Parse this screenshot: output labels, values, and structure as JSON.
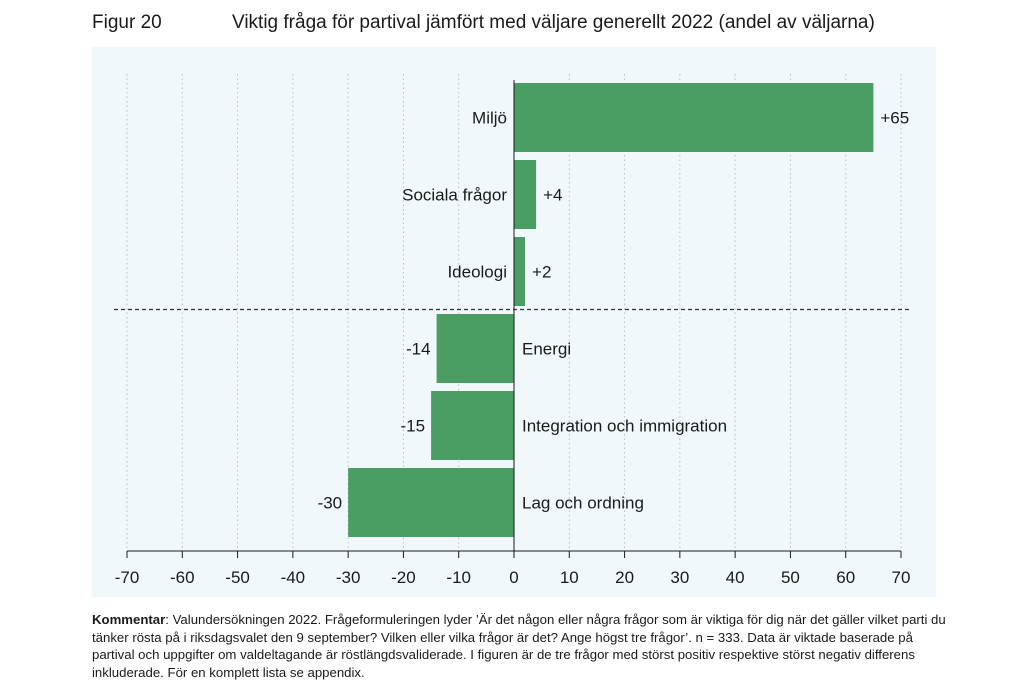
{
  "figure": {
    "number": "Figur 20",
    "title": "Viktig fråga för partival jämfört med väljare generellt 2022 (andel av väljarna)"
  },
  "comment": {
    "label": "Kommentar",
    "text": ": Valundersökningen 2022. Frågeformuleringen lyder ’Är det någon eller några frågor som är viktiga för dig när det gäller vilket parti du tänker rösta på i riksdagsvalet den 9 september? Vilken eller vilka frågor är det? Ange högst tre frågor’. n = 333. Data är viktade baserade på partival och uppgifter om valdeltagande är röstlängdsvaliderade. I figuren är de tre frågor med störst positiv respektive störst negativ differens inkluderade. För en komplett lista se appendix."
  },
  "chart_data": {
    "type": "bar",
    "orientation": "horizontal",
    "categories": [
      "Miljö",
      "Sociala frågor",
      "Ideologi",
      "Energi",
      "Integration och immigration",
      "Lag och ordning"
    ],
    "values": [
      65,
      4,
      2,
      -14,
      -15,
      -30
    ],
    "value_labels": [
      "+65",
      "+4",
      "+2",
      "-14",
      "-15",
      "-30"
    ],
    "xlim": [
      -70,
      70
    ],
    "xticks": [
      -70,
      -60,
      -50,
      -40,
      -30,
      -20,
      -10,
      0,
      10,
      20,
      30,
      40,
      50,
      60,
      70
    ],
    "xlabel": "",
    "ylabel": "",
    "grid": "vertical dotted",
    "separator": "dashed line between positive and negative groups",
    "bar_color": "#4a9d63",
    "background_color": "#f1f8fc"
  }
}
